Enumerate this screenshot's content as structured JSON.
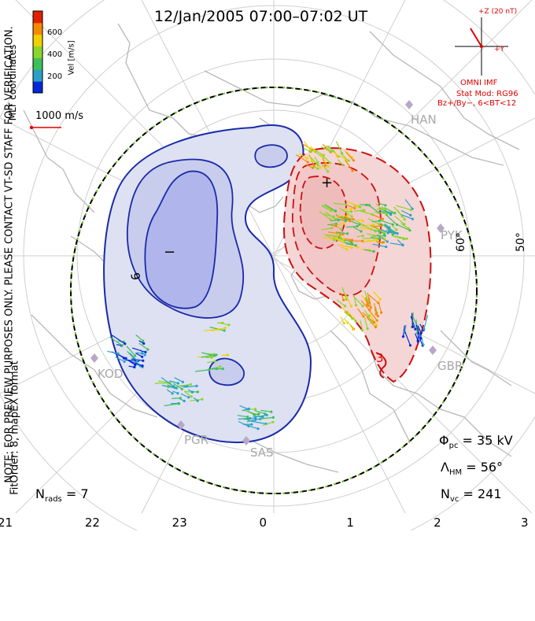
{
  "title": "12/Jan/2005 07:00–07:02 UT",
  "side_note": "NOTE: FOR PREVIEW PURPOSES ONLY. PLEASE CONTACT VT-SD STAFF FOR VERIFICATION.",
  "coords": "MLT coordinates",
  "fit_order": "FitOrder: 8, mapEX format",
  "colorbar": {
    "label": "Vel [m/s]",
    "ticks": [
      "600",
      "400",
      "200"
    ],
    "colors": [
      "#0028d8",
      "#2aa0c8",
      "#3fbf5a",
      "#8bd62a",
      "#f0d000",
      "#f58a00",
      "#e02000"
    ]
  },
  "ref_vector": "1000 m/s",
  "imf": {
    "z_label": "+Z (20 nT)",
    "y_label": "+Y",
    "source": "OMNI IMF",
    "model": "Stat Mod: RG96",
    "condition": "Bz+/By−, 6<BT<12"
  },
  "stations": [
    "HAN",
    "PYK",
    "GBR",
    "KOD",
    "PGR",
    "SAS"
  ],
  "lat_labels": [
    "60°",
    "50°"
  ],
  "contour_labels": [
    "6",
    "3",
    "+",
    "−"
  ],
  "stats": {
    "phi_pc": "35 kV",
    "lambda_hm": "56°",
    "n_vc": "241",
    "n_rads": "7"
  },
  "mlt_axis": [
    "21",
    "22",
    "23",
    "0",
    "1",
    "2",
    "3"
  ]
}
